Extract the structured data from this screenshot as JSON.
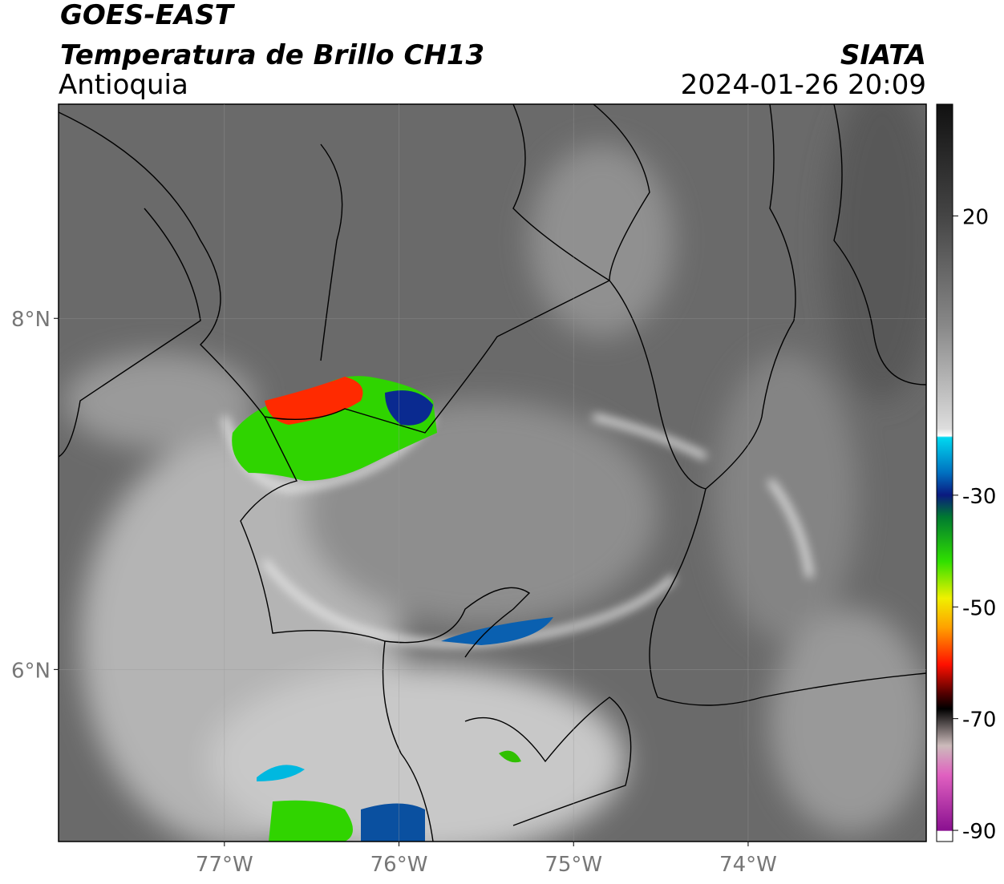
{
  "header": {
    "title": "GOES-EAST",
    "subtitle": "Temperatura de Brillo CH13",
    "region": "Antioquia",
    "source": "SIATA",
    "datetime": "2024-01-26 20:09"
  },
  "map": {
    "xlim": [
      -77.95,
      -72.98
    ],
    "ylim": [
      5.02,
      9.22
    ],
    "xticks": [
      {
        "value": -77,
        "label": "77°W"
      },
      {
        "value": -76,
        "label": "76°W"
      },
      {
        "value": -75,
        "label": "75°W"
      },
      {
        "value": -74,
        "label": "74°W"
      }
    ],
    "yticks": [
      {
        "value": 8,
        "label": "8°N"
      },
      {
        "value": 6,
        "label": "6°N"
      }
    ],
    "grid": true
  },
  "colorbar": {
    "range": [
      -92,
      40
    ],
    "ticks": [
      20,
      -30,
      -50,
      -70,
      -90
    ]
  }
}
